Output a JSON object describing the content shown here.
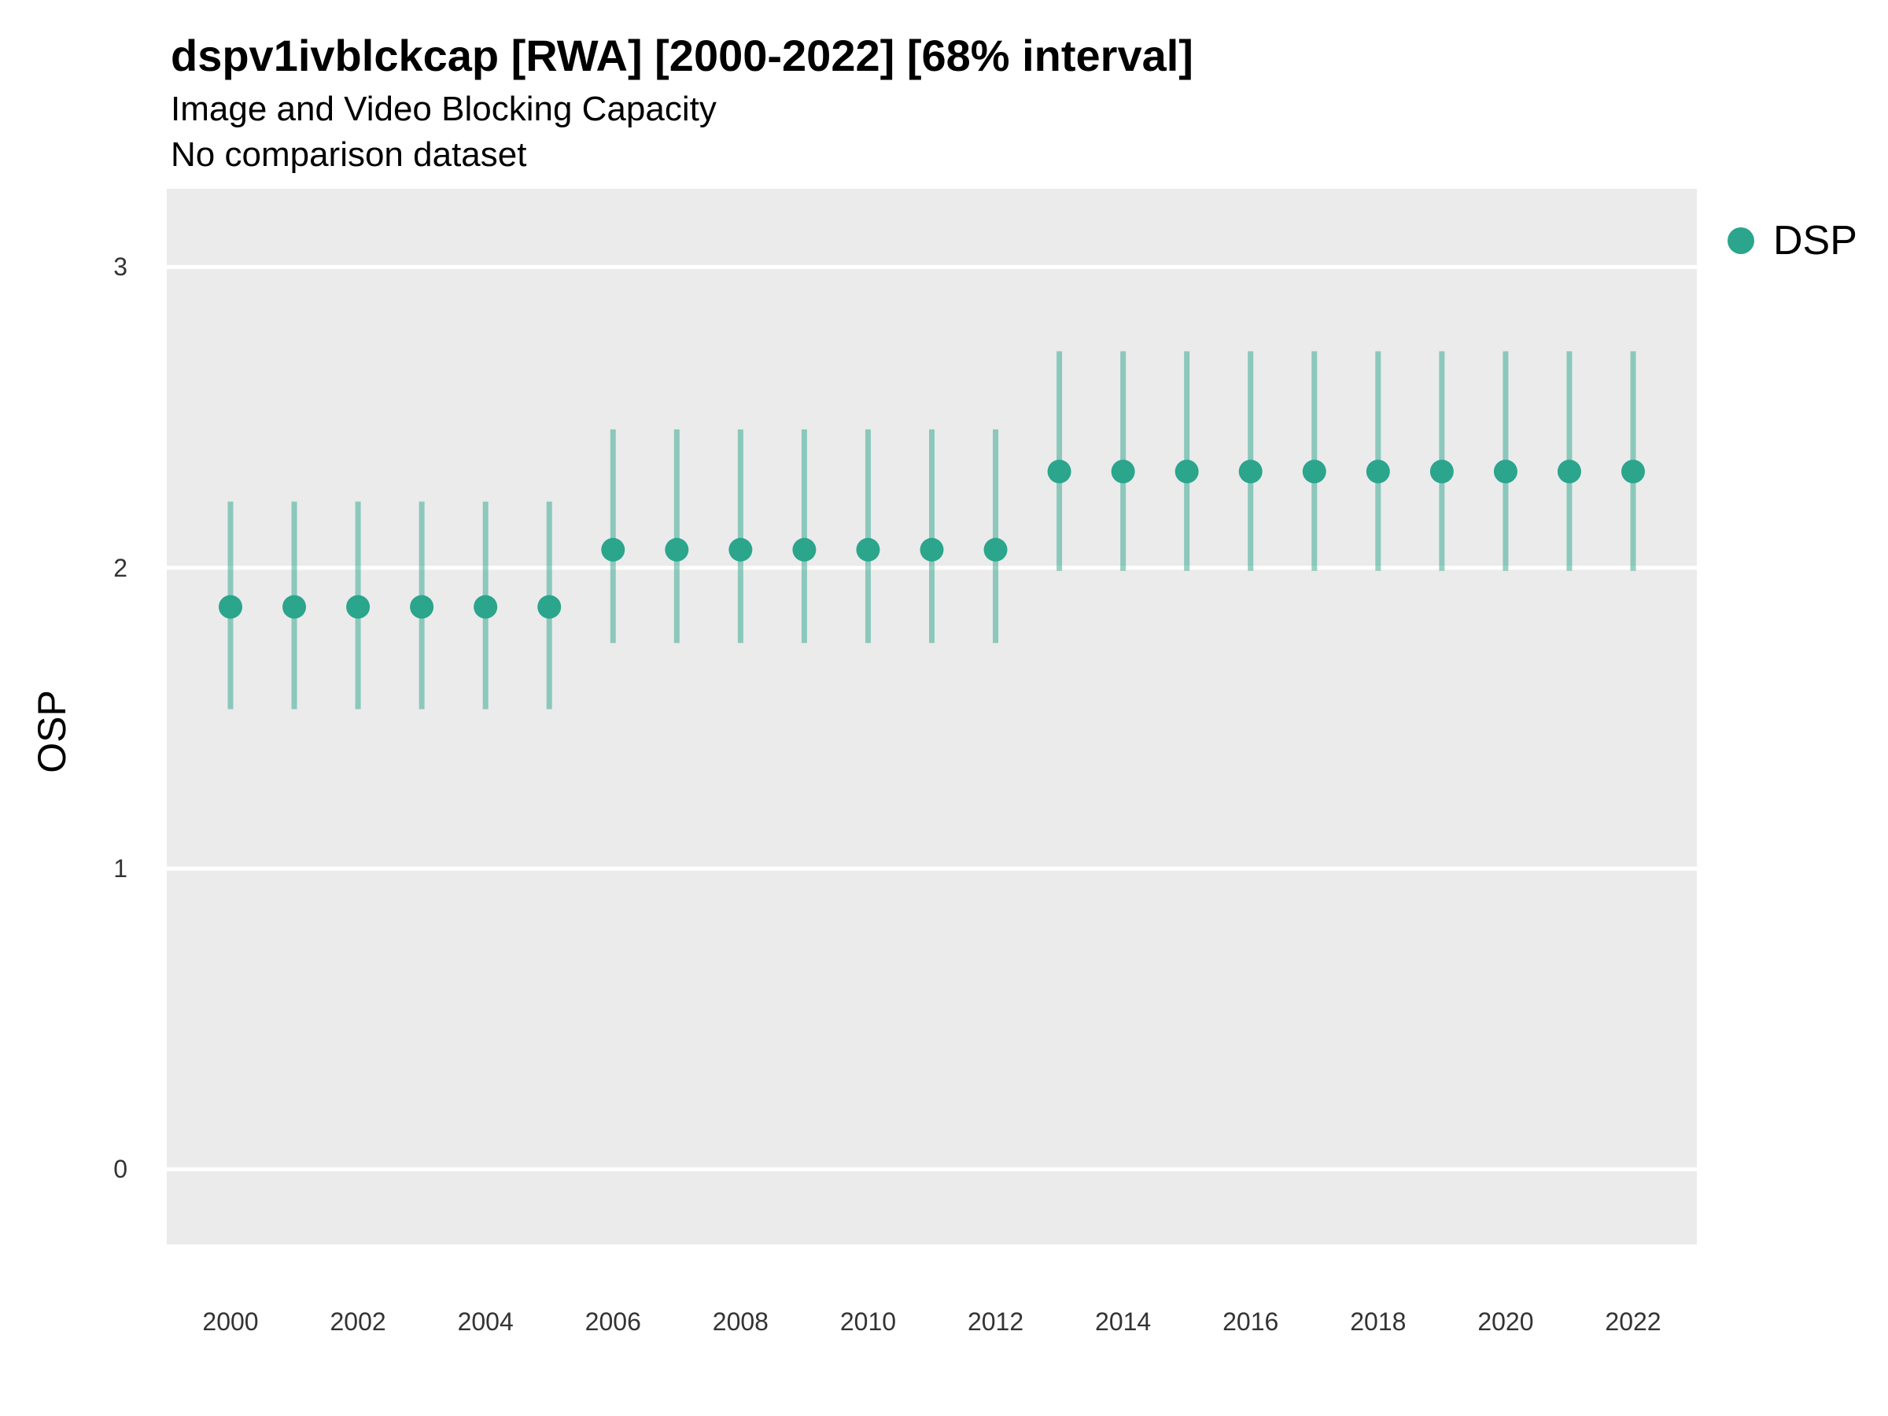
{
  "chart_data": {
    "type": "scatter",
    "title": "dspv1ivblckcap [RWA] [2000-2022] [68% interval]",
    "subtitle": "Image and Video Blocking Capacity",
    "note": "No comparison dataset",
    "xlabel": "",
    "ylabel": "OSP",
    "ylim": [
      -0.25,
      3.26
    ],
    "yticks": [
      0,
      1,
      2,
      3
    ],
    "xticks": [
      2000,
      2002,
      2004,
      2006,
      2008,
      2010,
      2012,
      2014,
      2016,
      2018,
      2020,
      2022
    ],
    "grid": "major-horizontal-white",
    "panel_background": "#EBEBEB",
    "gridline_color": "#FFFFFF",
    "legend_position": "right",
    "interval_width": "68%",
    "series": [
      {
        "name": "DSP",
        "point_color": "#2BA58C",
        "interval_opacity": 0.5,
        "x": [
          2000,
          2001,
          2002,
          2003,
          2004,
          2005,
          2006,
          2007,
          2008,
          2009,
          2010,
          2011,
          2012,
          2013,
          2014,
          2015,
          2016,
          2017,
          2018,
          2019,
          2020,
          2021,
          2022
        ],
        "y": [
          1.87,
          1.87,
          1.87,
          1.87,
          1.87,
          1.87,
          2.06,
          2.06,
          2.06,
          2.06,
          2.06,
          2.06,
          2.06,
          2.32,
          2.32,
          2.32,
          2.32,
          2.32,
          2.32,
          2.32,
          2.32,
          2.32,
          2.32
        ],
        "y_lo": [
          1.53,
          1.53,
          1.53,
          1.53,
          1.53,
          1.53,
          1.75,
          1.75,
          1.75,
          1.75,
          1.75,
          1.75,
          1.75,
          1.99,
          1.99,
          1.99,
          1.99,
          1.99,
          1.99,
          1.99,
          1.99,
          1.99,
          1.99
        ],
        "y_hi": [
          2.22,
          2.22,
          2.22,
          2.22,
          2.22,
          2.22,
          2.46,
          2.46,
          2.46,
          2.46,
          2.46,
          2.46,
          2.46,
          2.72,
          2.72,
          2.72,
          2.72,
          2.72,
          2.72,
          2.72,
          2.72,
          2.72,
          2.72
        ]
      }
    ]
  }
}
